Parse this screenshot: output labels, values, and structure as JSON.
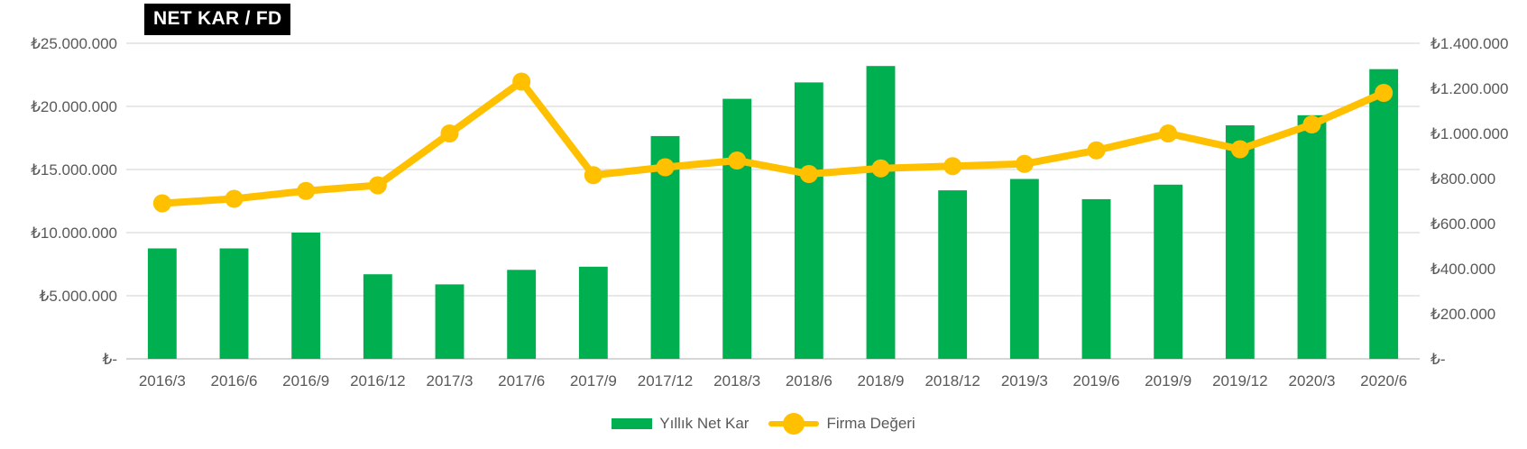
{
  "title": "NET KAR / FD",
  "colors": {
    "bar": "#00b050",
    "line": "#ffc000",
    "grid": "#d9d9d9",
    "axis": "#bfbfbf"
  },
  "legend": {
    "bar_label": "Yıllık Net Kar",
    "line_label": "Firma Değeri"
  },
  "chart_data": {
    "type": "bar+line",
    "categories": [
      "2016/3",
      "2016/6",
      "2016/9",
      "2016/12",
      "2017/3",
      "2017/6",
      "2017/9",
      "2017/12",
      "2018/3",
      "2018/6",
      "2018/9",
      "2018/12",
      "2019/3",
      "2019/6",
      "2019/9",
      "2019/12",
      "2020/3",
      "2020/6"
    ],
    "series": [
      {
        "name": "Yıllık Net Kar",
        "type": "bar",
        "axis": "left",
        "values": [
          8750000,
          8750000,
          10000000,
          6700000,
          5900000,
          7050000,
          7300000,
          17650000,
          20600000,
          21900000,
          23200000,
          13350000,
          14250000,
          12650000,
          13800000,
          18500000,
          19300000,
          22950000
        ]
      },
      {
        "name": "Firma Değeri",
        "type": "line",
        "axis": "right",
        "values": [
          690000,
          710000,
          745000,
          770000,
          1000000,
          1230000,
          815000,
          850000,
          880000,
          820000,
          845000,
          855000,
          865000,
          925000,
          1000000,
          930000,
          1040000,
          1180000
        ]
      }
    ],
    "y_left": {
      "min": 0,
      "max": 25000000,
      "tick_labels": [
        "₺-",
        "₺5.000.000",
        "₺10.000.000",
        "₺15.000.000",
        "₺20.000.000",
        "₺25.000.000"
      ]
    },
    "y_right": {
      "min": 0,
      "max": 1400000,
      "tick_labels": [
        "₺-",
        "₺200.000",
        "₺400.000",
        "₺600.000",
        "₺800.000",
        "₺1.000.000",
        "₺1.200.000",
        "₺1.400.000"
      ]
    },
    "grid": true,
    "legend_position": "bottom"
  }
}
